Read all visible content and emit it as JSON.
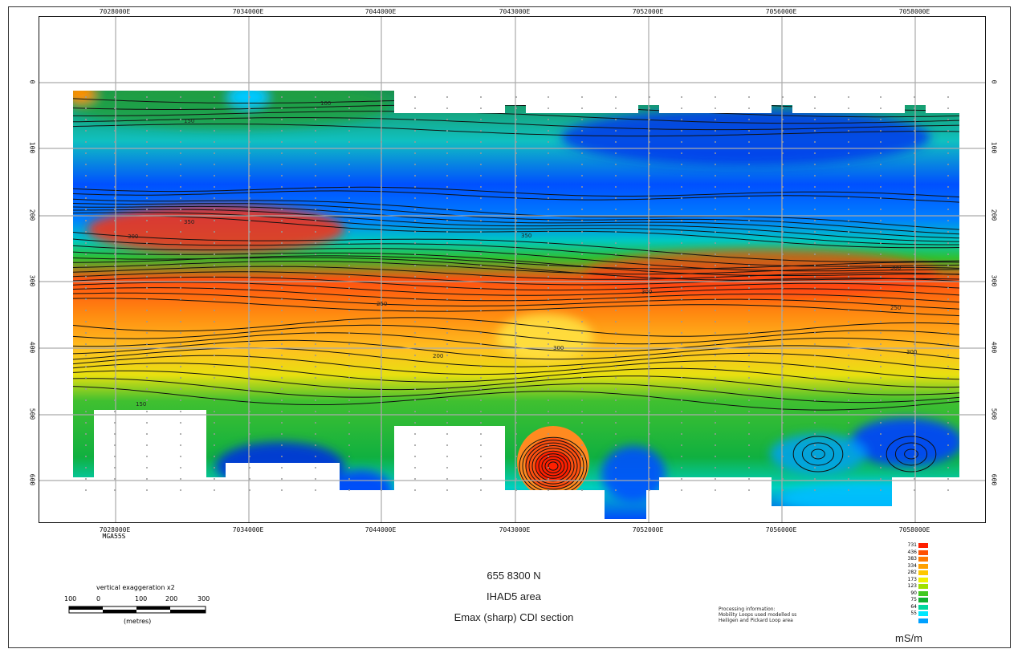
{
  "chart_data": {
    "type": "heatmap",
    "title": "655 8300 N",
    "subtitle": "IHAD5 area",
    "subtitle2": "Emax (sharp) CDI section",
    "x_ticks": [
      "7028000E",
      "7034000E",
      "7044000E",
      "7043000E",
      "7052000E",
      "7056000E",
      "7058000E"
    ],
    "x_subtick": "MGA55S",
    "y_ticks": [
      "0",
      "100",
      "200",
      "300",
      "400",
      "500",
      "600"
    ],
    "colorbar_unit": "mS/m",
    "colorbar": [
      {
        "label": "731",
        "color": "#ff2000"
      },
      {
        "label": "436",
        "color": "#ff5000"
      },
      {
        "label": "383",
        "color": "#ff7a00"
      },
      {
        "label": "334",
        "color": "#ffa000"
      },
      {
        "label": "282",
        "color": "#ffc800"
      },
      {
        "label": "173",
        "color": "#f0f000"
      },
      {
        "label": "123",
        "color": "#a0e000"
      },
      {
        "label": "90",
        "color": "#40c820"
      },
      {
        "label": "75",
        "color": "#10b030"
      },
      {
        "label": "64",
        "color": "#00d8a0"
      },
      {
        "label": "55",
        "color": "#00e8ff"
      },
      {
        "label": "",
        "color": "#00a0ff"
      }
    ],
    "contour_labels": [
      "100",
      "150",
      "350",
      "300",
      "250",
      "200",
      "150",
      "300",
      "350",
      "300",
      "300",
      "250",
      "300"
    ],
    "scale_bar": {
      "title": "vertical exaggeration x2",
      "ticks": [
        "100",
        "0",
        "100",
        "200",
        "300"
      ],
      "unit": "(metres)"
    },
    "processing_info": [
      "Processing information:",
      "Mobility Loops used modelled ss",
      "Heiligen and Pickard Loop area"
    ]
  }
}
